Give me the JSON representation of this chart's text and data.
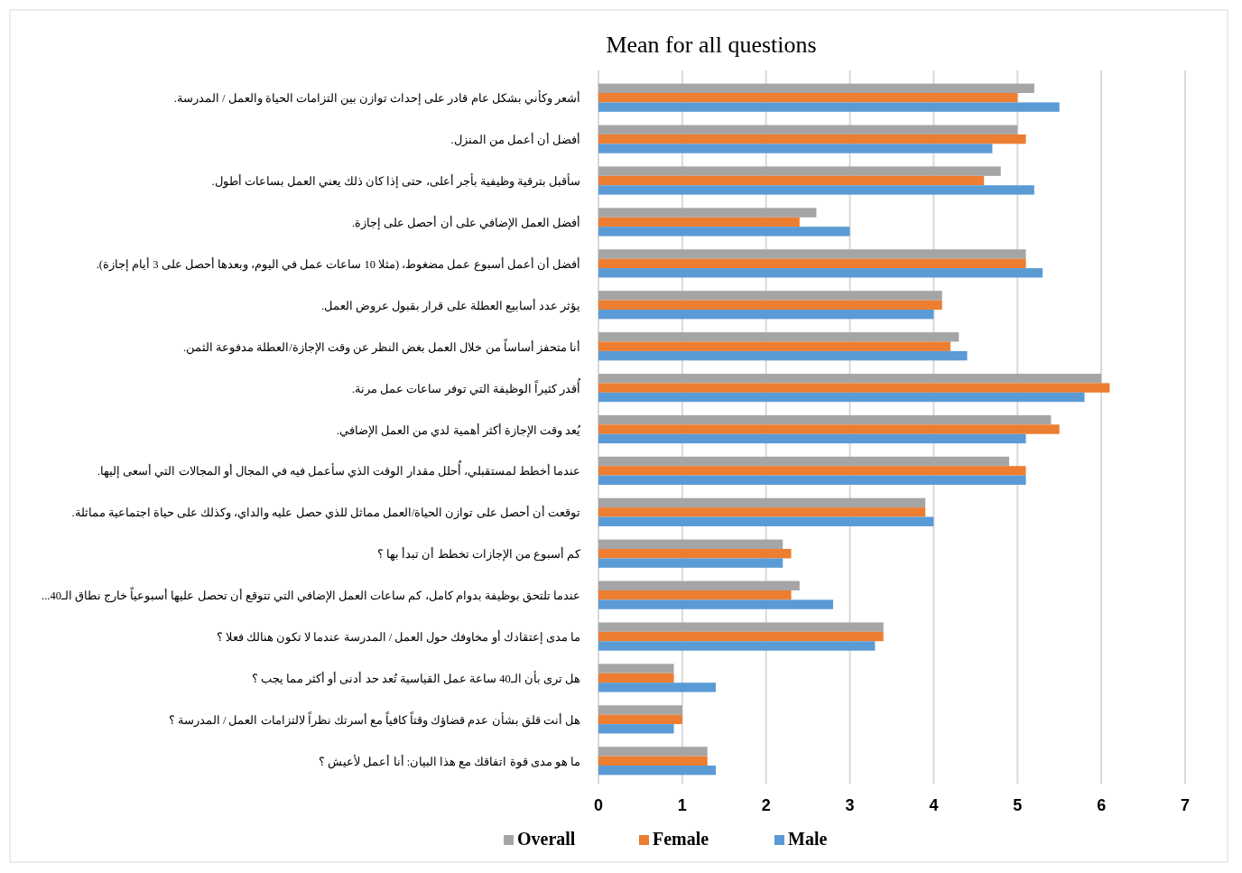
{
  "chart_data": {
    "type": "bar",
    "orientation": "horizontal",
    "title": "Mean for all questions",
    "categories": [
      "أشعر وكأني بشكل عام قادر على إحداث توازن بين التزامات الحياة والعمل / المدرسة.",
      "أفضل أن أعمل من المنزل.",
      "سأقبل بترقية وظيفية بأجر أعلى، حتى إذا كان ذلك يعني العمل بساعات أطول.",
      "أفضل العمل الإضافي على أن أحصل على إجازة.",
      "أفضل أن أعمل أسبوع عمل مضغوط، (مثلا 10 ساعات عمل في اليوم، وبعدها أحصل على 3 أيام إجازة).",
      "يؤثر عدد أسابيع العطلة على قرار بقبول عروض العمل.",
      "أنا متحفز أساساً من خلال العمل بغض النظر عن وقت الإجازة/العطلة مدفوعة الثمن.",
      "أُقدر كثيراً الوظيفة التي توفر ساعات عمل مرنة.",
      "يُعد وقت الإجازة أكثر أهمية لدي من العمل الإضافي.",
      "عندما أخطط لمستقبلي، أُحلل مقدار الوقت الذي سأعمل فيه في المجال أو المجالات التي أسعى إليها.",
      "توقعت أن أحصل على توازن الحياة/العمل مماثل للذي حصل عليه والداي، وكذلك على حياة اجتماعية مماثلة.",
      "كم أسبوع من الإجازات تخطط أن تبدأ بها ؟",
      "عندما تلتحق بوظيفة بدوام كامل، كم ساعات العمل الإضافي التي تتوقع أن تحصل عليها أسبوعياً خارج نطاق الـ40...",
      "ما مدى إعتقادك أو مخاوفك حول العمل / المدرسة عندما لا تكون هنالك فعلا ؟",
      "هل ترى بأن الـ40 ساعة عمل القياسية تُعد حد أدنى أو أكثر مما يجب ؟",
      "هل أنت قلق بشأن عدم قضاؤك وقتاً كافياً مع أسرتك نظراً لالتزامات العمل / المدرسة ؟",
      "ما هو مدى قوة اتفاقك مع هذا البيان: أنا أعمل لأعيش ؟"
    ],
    "series": [
      {
        "name": "Overall",
        "color": "#a5a5a5",
        "values": [
          5.2,
          5.0,
          4.8,
          2.6,
          5.1,
          4.1,
          4.3,
          6.0,
          5.4,
          4.9,
          3.9,
          2.2,
          2.4,
          3.4,
          0.9,
          1.0,
          1.3
        ]
      },
      {
        "name": "Female",
        "color": "#ed7d31",
        "values": [
          5.0,
          5.1,
          4.6,
          2.4,
          5.1,
          4.1,
          4.2,
          6.1,
          5.5,
          5.1,
          3.9,
          2.3,
          2.3,
          3.4,
          0.9,
          1.0,
          1.3
        ]
      },
      {
        "name": "Male",
        "color": "#5b9bd5",
        "values": [
          5.5,
          4.7,
          5.2,
          3.0,
          5.3,
          4.0,
          4.4,
          5.8,
          5.1,
          5.1,
          4.0,
          2.2,
          2.8,
          3.3,
          1.4,
          0.9,
          1.4
        ]
      }
    ],
    "xlim": [
      0,
      7
    ],
    "xticks": [
      0,
      1,
      2,
      3,
      4,
      5,
      6,
      7
    ],
    "grid": "x",
    "legend": "bottom"
  }
}
